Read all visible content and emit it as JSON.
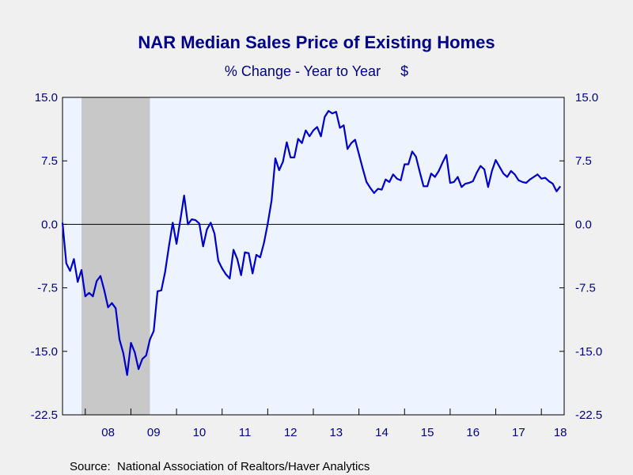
{
  "chart_data": {
    "type": "line",
    "title": "NAR Median Sales Price of Existing Homes",
    "subtitle": "% Change - Year to Year     $",
    "source": "Source:  National Association of Realtors/Haver Analytics",
    "x_tick_labels": [
      "08",
      "09",
      "10",
      "11",
      "12",
      "13",
      "14",
      "15",
      "16",
      "17",
      "18"
    ],
    "y_tick_labels": [
      "15.0",
      "7.5",
      "0.0",
      "-7.5",
      "-15.0",
      "-22.5"
    ],
    "y_ticks": [
      15.0,
      7.5,
      0.0,
      -7.5,
      -15.0,
      -22.5
    ],
    "ylim": [
      -22.5,
      15.0
    ],
    "xlim": [
      "2007-07",
      "2018-07"
    ],
    "recession_shading": {
      "start": "2007-12",
      "end": "2009-06"
    },
    "colors": {
      "line": "#0000cd",
      "recession": "#c8c8c8",
      "plot_bg": "#eef4ff",
      "text": "#00008b"
    },
    "series": [
      {
        "x": [
          "2007-07",
          "2007-08",
          "2007-09",
          "2007-10",
          "2007-11",
          "2007-12",
          "2008-01",
          "2008-02",
          "2008-03",
          "2008-04",
          "2008-05",
          "2008-06",
          "2008-07",
          "2008-08",
          "2008-09",
          "2008-10",
          "2008-11",
          "2008-12",
          "2009-01",
          "2009-02",
          "2009-03",
          "2009-04",
          "2009-05",
          "2009-06",
          "2009-07",
          "2009-08",
          "2009-09",
          "2009-10",
          "2009-11",
          "2009-12",
          "2010-01",
          "2010-02",
          "2010-03",
          "2010-04",
          "2010-05",
          "2010-06",
          "2010-07",
          "2010-08",
          "2010-09",
          "2010-10",
          "2010-11",
          "2010-12",
          "2011-01",
          "2011-02",
          "2011-03",
          "2011-04",
          "2011-05",
          "2011-06",
          "2011-07",
          "2011-08",
          "2011-09",
          "2011-10",
          "2011-11",
          "2011-12",
          "2012-01",
          "2012-02",
          "2012-03",
          "2012-04",
          "2012-05",
          "2012-06",
          "2012-07",
          "2012-08",
          "2012-09",
          "2012-10",
          "2012-11",
          "2012-12",
          "2013-01",
          "2013-02",
          "2013-03",
          "2013-04",
          "2013-05",
          "2013-06",
          "2013-07",
          "2013-08",
          "2013-09",
          "2013-10",
          "2013-11",
          "2013-12",
          "2014-01",
          "2014-02",
          "2014-03",
          "2014-04",
          "2014-05",
          "2014-06",
          "2014-07",
          "2014-08",
          "2014-09",
          "2014-10",
          "2014-11",
          "2014-12",
          "2015-01",
          "2015-02",
          "2015-03",
          "2015-04",
          "2015-05",
          "2015-06",
          "2015-07",
          "2015-08",
          "2015-09",
          "2015-10",
          "2015-11",
          "2015-12",
          "2016-01",
          "2016-02",
          "2016-03",
          "2016-04",
          "2016-05",
          "2016-06",
          "2016-07",
          "2016-08",
          "2016-09",
          "2016-10",
          "2016-11",
          "2016-12",
          "2017-01",
          "2017-02",
          "2017-03",
          "2017-04",
          "2017-05",
          "2017-06",
          "2017-07",
          "2017-08",
          "2017-09",
          "2017-10",
          "2017-11",
          "2017-12",
          "2018-01",
          "2018-02",
          "2018-03",
          "2018-04",
          "2018-05",
          "2018-06"
        ],
        "values": [
          0.2,
          -4.6,
          -5.5,
          -4.1,
          -6.8,
          -5.4,
          -8.5,
          -8.1,
          -8.5,
          -6.7,
          -6.1,
          -7.8,
          -9.8,
          -9.3,
          -9.9,
          -13.6,
          -15.2,
          -17.8,
          -14.0,
          -15.1,
          -17.1,
          -15.9,
          -15.5,
          -13.6,
          -12.6,
          -7.9,
          -7.8,
          -5.6,
          -2.6,
          0.2,
          -2.3,
          0.5,
          3.4,
          0.0,
          0.6,
          0.5,
          0.1,
          -2.6,
          -0.6,
          0.2,
          -1.1,
          -4.3,
          -5.2,
          -5.9,
          -6.4,
          -3.0,
          -4.1,
          -6.0,
          -3.3,
          -3.4,
          -5.8,
          -3.6,
          -3.9,
          -2.2,
          0.1,
          2.8,
          7.8,
          6.4,
          7.4,
          9.7,
          7.9,
          7.9,
          10.1,
          9.6,
          11.1,
          10.4,
          11.1,
          11.5,
          10.4,
          12.7,
          13.4,
          13.1,
          13.3,
          11.4,
          11.7,
          8.9,
          9.6,
          10.0,
          8.3,
          6.6,
          5.0,
          4.3,
          3.7,
          4.2,
          4.1,
          5.3,
          5.0,
          5.9,
          5.4,
          5.2,
          7.1,
          7.1,
          8.6,
          8.0,
          6.2,
          4.5,
          4.5,
          6.0,
          5.6,
          6.3,
          7.3,
          8.2,
          4.9,
          5.0,
          5.6,
          4.4,
          4.8,
          4.9,
          5.1,
          6.1,
          6.9,
          6.5,
          4.4,
          6.3,
          7.6,
          6.8,
          6.0,
          5.6,
          6.3,
          5.9,
          5.2,
          5.0,
          4.9,
          5.3,
          5.6,
          5.9,
          5.4,
          5.5,
          5.1,
          4.8,
          3.9,
          4.5
        ]
      }
    ],
    "grid": false,
    "legend": "none"
  }
}
